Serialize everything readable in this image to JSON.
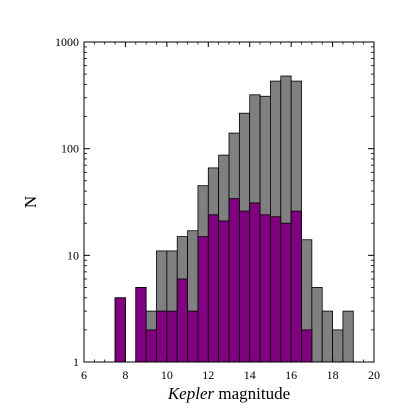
{
  "chart_data": {
    "type": "bar",
    "title": "",
    "xlabel_italic": "Kepler",
    "xlabel_rest": " magnitude",
    "ylabel": "N",
    "xlim": [
      6,
      20
    ],
    "ylim": [
      1,
      1000
    ],
    "y_scale": "log",
    "bin_width": 0.5,
    "x_ticks": [
      6,
      8,
      10,
      12,
      14,
      16,
      18,
      20
    ],
    "y_ticks": [
      {
        "value": 1,
        "label": "1"
      },
      {
        "value": 10,
        "label": "10"
      },
      {
        "value": 100,
        "label": "100"
      },
      {
        "value": 1000,
        "label": "1000"
      }
    ],
    "grid": false,
    "legend": false,
    "series": [
      {
        "color": "#808080",
        "bins": [
          {
            "x": 7.5,
            "y": 4
          },
          {
            "x": 8.5,
            "y": 5
          },
          {
            "x": 9.0,
            "y": 3
          },
          {
            "x": 9.5,
            "y": 11
          },
          {
            "x": 10.0,
            "y": 11
          },
          {
            "x": 10.5,
            "y": 15
          },
          {
            "x": 11.0,
            "y": 17
          },
          {
            "x": 11.5,
            "y": 45
          },
          {
            "x": 12.0,
            "y": 66
          },
          {
            "x": 12.5,
            "y": 87
          },
          {
            "x": 13.0,
            "y": 140
          },
          {
            "x": 13.5,
            "y": 215
          },
          {
            "x": 14.0,
            "y": 320
          },
          {
            "x": 14.5,
            "y": 310
          },
          {
            "x": 15.0,
            "y": 430
          },
          {
            "x": 15.5,
            "y": 480
          },
          {
            "x": 16.0,
            "y": 430
          },
          {
            "x": 16.5,
            "y": 14
          },
          {
            "x": 17.0,
            "y": 5
          },
          {
            "x": 17.5,
            "y": 3
          },
          {
            "x": 18.0,
            "y": 2
          },
          {
            "x": 18.5,
            "y": 3
          }
        ]
      },
      {
        "color": "#800080",
        "bins": [
          {
            "x": 7.5,
            "y": 4
          },
          {
            "x": 8.5,
            "y": 5
          },
          {
            "x": 9.0,
            "y": 2
          },
          {
            "x": 9.5,
            "y": 3
          },
          {
            "x": 10.0,
            "y": 3
          },
          {
            "x": 10.5,
            "y": 6
          },
          {
            "x": 11.0,
            "y": 3
          },
          {
            "x": 11.5,
            "y": 15
          },
          {
            "x": 12.0,
            "y": 24
          },
          {
            "x": 12.5,
            "y": 21
          },
          {
            "x": 13.0,
            "y": 34
          },
          {
            "x": 13.5,
            "y": 26
          },
          {
            "x": 14.0,
            "y": 31
          },
          {
            "x": 14.5,
            "y": 24
          },
          {
            "x": 15.0,
            "y": 23
          },
          {
            "x": 15.5,
            "y": 20
          },
          {
            "x": 16.0,
            "y": 26
          },
          {
            "x": 16.5,
            "y": 2
          }
        ]
      }
    ]
  }
}
